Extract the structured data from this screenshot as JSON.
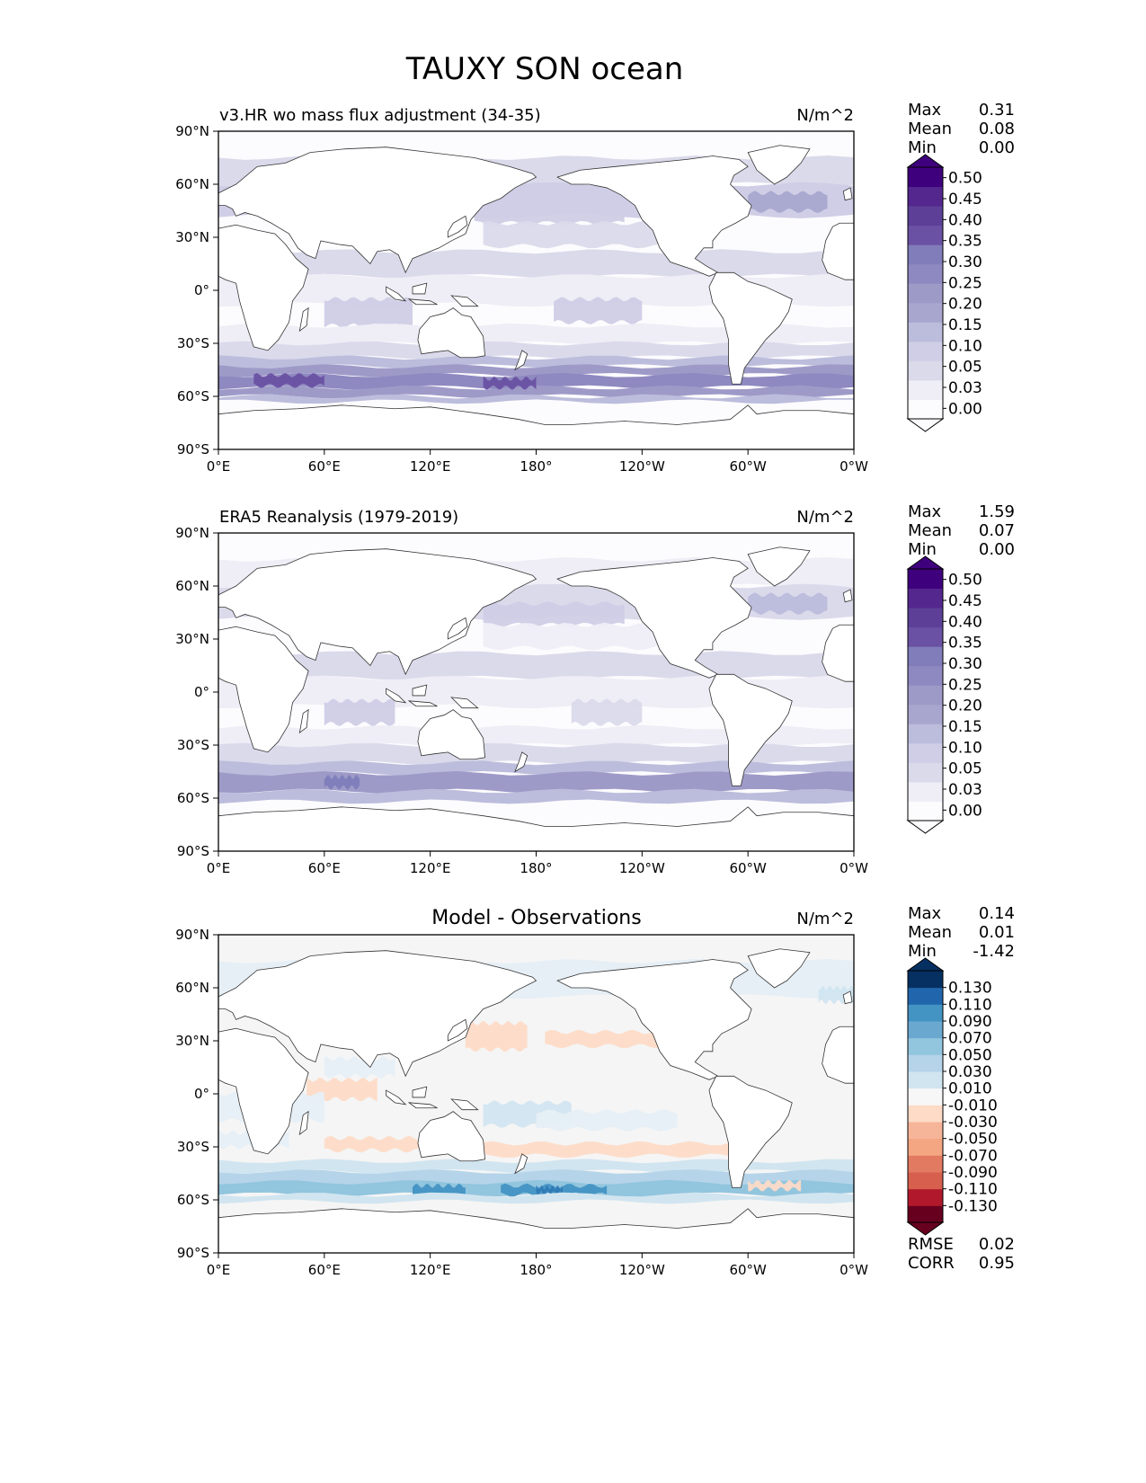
{
  "figure_title": "TAUXY SON ocean",
  "colors": {
    "purples": [
      "#fcfbfd",
      "#efedf5",
      "#dadaeb",
      "#cfcee6",
      "#bcbddc",
      "#a8a6cf",
      "#9e9ac8",
      "#8e89c0",
      "#807dba",
      "#6a51a3",
      "#5d3f98",
      "#54278f",
      "#3f007d"
    ],
    "diff_pos": [
      "#f7f7f7",
      "#e6eff6",
      "#d1e5f0",
      "#b5d4e9",
      "#92c5de",
      "#6aa8d0",
      "#4393c3",
      "#2f79b5",
      "#2166ac",
      "#053061"
    ],
    "diff_neg": [
      "#fbe1d2",
      "#fddbc7",
      "#f6b598",
      "#f4a582",
      "#e27a62",
      "#d6604d",
      "#bc3239",
      "#b2182b",
      "#67001f"
    ],
    "land": "#ffffff",
    "ocean_fill": "#f5f5f5",
    "coast": "#333333"
  },
  "chart_data": [
    {
      "type": "contour-map",
      "panel": "test",
      "title_left": "v3.HR wo mass flux adjustment (34-35)",
      "title_center": "",
      "units": "N/m^2",
      "stats": [
        {
          "label": "Max",
          "value": "0.31"
        },
        {
          "label": "Mean",
          "value": "0.08"
        },
        {
          "label": "Min",
          "value": "0.00"
        }
      ],
      "colorbar_levels": [
        "0.00",
        "0.03",
        "0.05",
        "0.10",
        "0.15",
        "0.20",
        "0.25",
        "0.30",
        "0.35",
        "0.40",
        "0.45",
        "0.50"
      ],
      "colorbar_extend": "both",
      "xticks": [
        "0°E",
        "60°E",
        "120°E",
        "180°",
        "120°W",
        "60°W",
        "0°W"
      ],
      "yticks": [
        "90°N",
        "60°N",
        "30°N",
        "0°",
        "30°S",
        "60°S",
        "90°S"
      ],
      "xlim": [
        0,
        360
      ],
      "ylim": [
        -90,
        90
      ],
      "field": {
        "southern_ocean_band": {
          "lat_range": [
            -62,
            -38
          ],
          "peak_value": 0.3
        },
        "trades": {
          "lat_range": [
            -25,
            20
          ],
          "value": 0.12
        },
        "north_pacific": {
          "lat_range": [
            35,
            55
          ],
          "value": 0.15
        },
        "north_atlantic": {
          "lat_range": [
            45,
            65
          ],
          "value": 0.2
        }
      }
    },
    {
      "type": "contour-map",
      "panel": "reference",
      "title_left": "ERA5 Reanalysis (1979-2019)",
      "title_center": "",
      "units": "N/m^2",
      "stats": [
        {
          "label": "Max",
          "value": "1.59"
        },
        {
          "label": "Mean",
          "value": "0.07"
        },
        {
          "label": "Min",
          "value": "0.00"
        }
      ],
      "colorbar_levels": [
        "0.00",
        "0.03",
        "0.05",
        "0.10",
        "0.15",
        "0.20",
        "0.25",
        "0.30",
        "0.35",
        "0.40",
        "0.45",
        "0.50"
      ],
      "colorbar_extend": "both",
      "xticks": [
        "0°E",
        "60°E",
        "120°E",
        "180°",
        "120°W",
        "60°W",
        "0°W"
      ],
      "yticks": [
        "90°N",
        "60°N",
        "30°N",
        "0°",
        "30°S",
        "60°S",
        "90°S"
      ],
      "xlim": [
        0,
        360
      ],
      "ylim": [
        -90,
        90
      ],
      "field": {
        "southern_ocean_band": {
          "lat_range": [
            -62,
            -40
          ],
          "peak_value": 0.25
        },
        "trades": {
          "lat_range": [
            -25,
            20
          ],
          "value": 0.1
        },
        "north_pacific": {
          "lat_range": [
            35,
            55
          ],
          "value": 0.13
        },
        "north_atlantic": {
          "lat_range": [
            45,
            65
          ],
          "value": 0.17
        }
      }
    },
    {
      "type": "contour-map",
      "panel": "difference",
      "title_left": "",
      "title_center": "Model - Observations",
      "units": "N/m^2",
      "stats": [
        {
          "label": "Max",
          "value": "0.14"
        },
        {
          "label": "Mean",
          "value": "0.01"
        },
        {
          "label": "Min",
          "value": "-1.42"
        }
      ],
      "colorbar_levels": [
        "-0.130",
        "-0.110",
        "-0.090",
        "-0.070",
        "-0.050",
        "-0.030",
        "-0.010",
        "0.010",
        "0.030",
        "0.050",
        "0.070",
        "0.090",
        "0.110",
        "0.130"
      ],
      "colorbar_extend": "both",
      "metrics": [
        {
          "label": "RMSE",
          "value": "0.02"
        },
        {
          "label": "CORR",
          "value": "0.95"
        }
      ],
      "xticks": [
        "0°E",
        "60°E",
        "120°E",
        "180°",
        "120°W",
        "60°W",
        "0°W"
      ],
      "yticks": [
        "90°N",
        "60°N",
        "30°N",
        "0°",
        "30°S",
        "60°S",
        "90°S"
      ],
      "xlim": [
        0,
        360
      ],
      "ylim": [
        -90,
        90
      ],
      "field": {
        "southern_ocean_positive": {
          "lat_range": [
            -62,
            -42
          ],
          "peak_value": 0.09
        },
        "subtropical_negative": {
          "lat_range": [
            -35,
            -25
          ],
          "value": -0.03
        },
        "north_pacific_negative": {
          "lat_range": [
            25,
            35
          ],
          "value": -0.03
        }
      }
    }
  ]
}
